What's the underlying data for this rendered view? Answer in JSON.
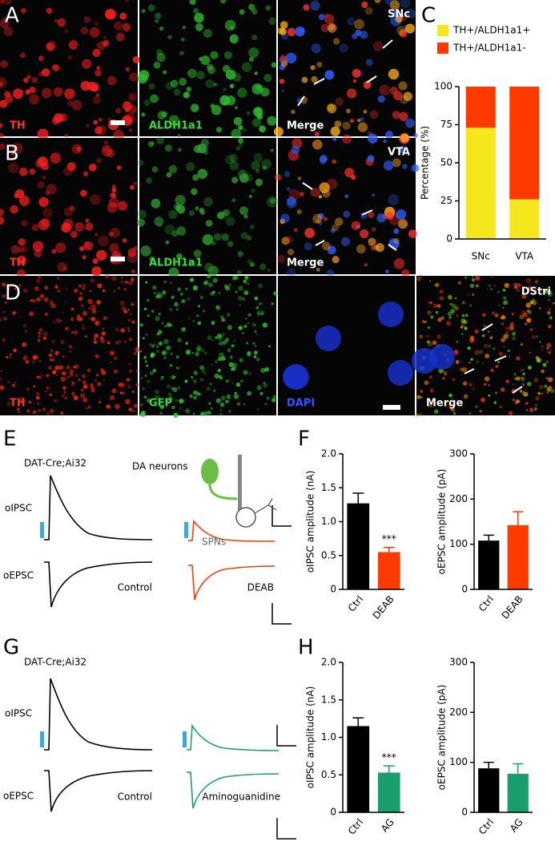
{
  "panels": {
    "letters": [
      "A",
      "B",
      "C",
      "D",
      "E",
      "F",
      "G",
      "H"
    ]
  },
  "images": {
    "row_a": {
      "labels": [
        "TH",
        "ALDH1a1",
        "Merge"
      ],
      "region": "SNc"
    },
    "row_b": {
      "labels": [
        "TH",
        "ALDH1a1",
        "Merge"
      ],
      "region": "VTA"
    },
    "row_d": {
      "labels": [
        "TH",
        "GFP",
        "DAPI",
        "Merge"
      ],
      "region": "DStri"
    }
  },
  "traces": {
    "e": {
      "mouse": "DAT-Cre;Ai32",
      "rows": [
        "oIPSC",
        "oEPSC"
      ],
      "conditions": [
        "Control",
        "DEAB"
      ],
      "schematic": [
        "DA neurons",
        "SPNs"
      ]
    },
    "g": {
      "mouse": "DAT-Cre;Ai32",
      "rows": [
        "oIPSC",
        "oEPSC"
      ],
      "conditions": [
        "Control",
        "Aminoguanidine"
      ]
    }
  },
  "chart_data": [
    {
      "type": "stacked_bar",
      "categories": [
        "SNc",
        "VTA"
      ],
      "series": [
        {
          "name": "TH+/ALDH1a1+",
          "color": "#f5e61e",
          "values": [
            73,
            26
          ]
        },
        {
          "name": "TH+/ALDH1a1-",
          "color": "#ff3a00",
          "values": [
            27,
            74
          ]
        }
      ],
      "ylabel": "Percentage (%)",
      "ylim": [
        0,
        100
      ],
      "yticks": [
        0,
        25,
        50,
        75,
        100
      ]
    },
    {
      "type": "bar",
      "categories": [
        "Ctrl",
        "DEAB"
      ],
      "values": [
        1.27,
        0.55
      ],
      "errors": [
        0.15,
        0.07
      ],
      "colors": [
        "#000000",
        "#ff3a00"
      ],
      "ylabel": "oIPSC amplitude (nA)",
      "annotation": "***",
      "ylim": [
        0,
        2
      ],
      "yticks": [
        0,
        0.5,
        {
          "value": 1,
          "label": "1.0"
        },
        1.5,
        {
          "value": 2,
          "label": "2.0"
        }
      ]
    },
    {
      "type": "bar",
      "categories": [
        "Ctrl",
        "DEAB"
      ],
      "values": [
        108,
        142
      ],
      "errors": [
        12,
        30
      ],
      "colors": [
        "#000000",
        "#ff3a00"
      ],
      "ylabel": "oEPSC amplitude (pA)",
      "ylim": [
        0,
        300
      ],
      "yticks": [
        0,
        100,
        200,
        300
      ]
    },
    {
      "type": "bar",
      "categories": [
        "Ctrl",
        "AG"
      ],
      "values": [
        1.15,
        0.53
      ],
      "errors": [
        0.11,
        0.09
      ],
      "colors": [
        "#000000",
        "#1a9e6e"
      ],
      "ylabel": "oIPSC amplitude (nA)",
      "annotation": "***",
      "ylim": [
        0,
        2
      ],
      "yticks": [
        0,
        0.5,
        {
          "value": 1,
          "label": "1.0"
        },
        1.5,
        {
          "value": 2,
          "label": "2.0"
        }
      ]
    },
    {
      "type": "bar",
      "categories": [
        "Ctrl",
        "AG"
      ],
      "values": [
        88,
        77
      ],
      "errors": [
        12,
        20
      ],
      "colors": [
        "#000000",
        "#1a9e6e"
      ],
      "ylabel": "oEPSC amplitude (pA)",
      "ylim": [
        0,
        300
      ],
      "yticks": [
        0,
        100,
        200,
        300
      ]
    }
  ]
}
